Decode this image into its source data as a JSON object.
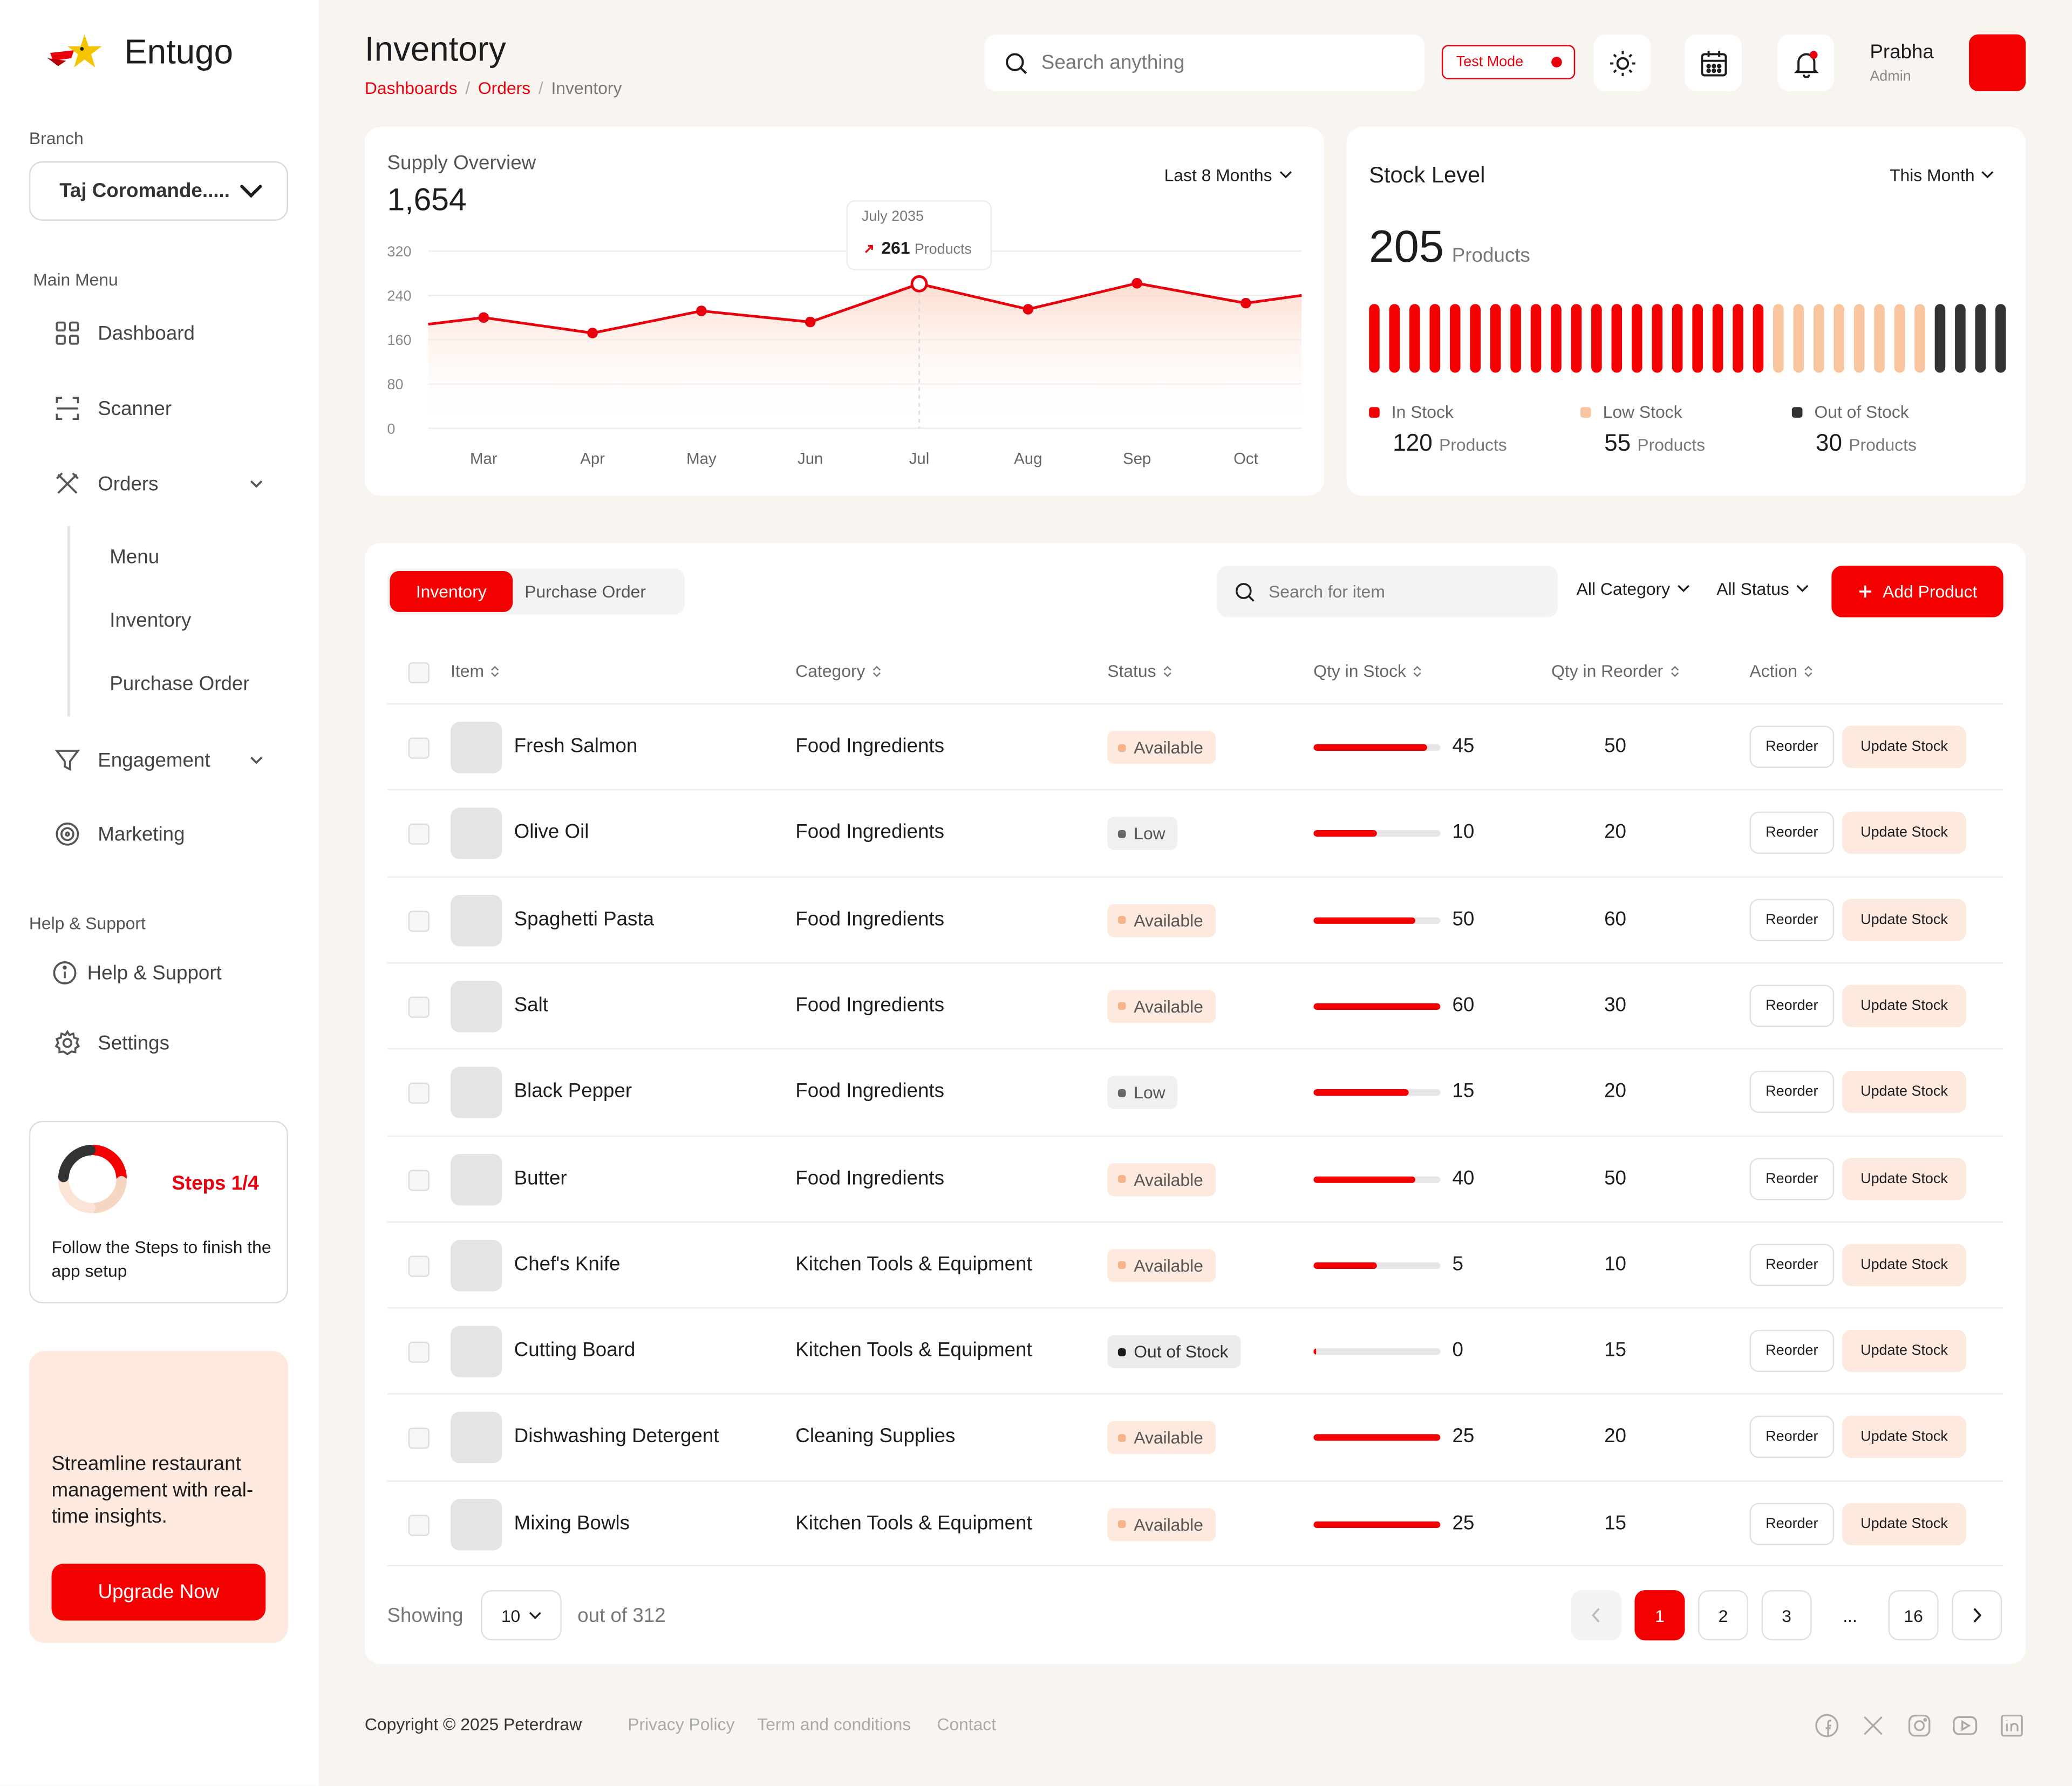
{
  "app": {
    "name": "Entugo"
  },
  "sidebar": {
    "branch_label": "Branch",
    "branch_value": "Taj Coromande.....",
    "main_menu_label": "Main Menu",
    "items": {
      "dashboard": "Dashboard",
      "scanner": "Scanner",
      "orders": "Orders",
      "engagement": "Engagement",
      "marketing": "Marketing"
    },
    "orders_sub": [
      "Menu",
      "Inventory",
      "Purchase Order"
    ],
    "help_label": "Help & Support",
    "help_items": {
      "help": "Help & Support",
      "settings": "Settings"
    },
    "steps": {
      "title": "Steps 1/4",
      "progress": 0.25,
      "text": "Follow the Steps to finish the  app setup"
    },
    "promo": {
      "text": "Streamline restaurant management with real-time insights.",
      "button": "Upgrade Now"
    }
  },
  "header": {
    "title": "Inventory",
    "breadcrumb": [
      "Dashboards",
      "Orders",
      "Inventory"
    ],
    "search_placeholder": "Search anything",
    "test_mode": "Test Mode",
    "user": {
      "name": "Prabha",
      "role": "Admin"
    }
  },
  "supply": {
    "title": "Supply Overview",
    "total": "1,654",
    "range": "Last 8 Months",
    "tooltip": {
      "date": "July 2035",
      "value": "261",
      "unit": "Products"
    }
  },
  "chart_data": {
    "type": "area",
    "x": [
      "Mar",
      "Apr",
      "May",
      "Jun",
      "Jul",
      "Aug",
      "Sep",
      "Oct"
    ],
    "values": [
      200,
      172,
      212,
      192,
      261,
      215,
      262,
      226
    ],
    "line_start": 188,
    "line_end": 240,
    "ylim": [
      0,
      320
    ],
    "yticks": [
      "320",
      "240",
      "160",
      "80",
      "0"
    ],
    "highlight": "Jul",
    "color": "#e8000d"
  },
  "stock": {
    "title": "Stock Level",
    "period": "This Month",
    "total": "205",
    "unit": "Products",
    "in_stock_bars": 20,
    "low_stock_bars": 8,
    "out_stock_bars": 4,
    "legend": [
      {
        "label": "In Stock",
        "count": "120",
        "unit": "Products",
        "color": "#f40000"
      },
      {
        "label": "Low Stock",
        "count": "55",
        "unit": "Products",
        "color": "#f8c59e"
      },
      {
        "label": "Out of Stock",
        "count": "30",
        "unit": "Products",
        "color": "#333333"
      }
    ]
  },
  "table": {
    "tabs": [
      "Inventory",
      "Purchase Order"
    ],
    "search_placeholder": "Search for item",
    "filter_category": "All Category",
    "filter_status": "All Status",
    "add_button": "Add Product",
    "headers": [
      "Item",
      "Category",
      "Status",
      "Qty in Stock",
      "Qty in Reorder",
      "Action"
    ],
    "reorder_label": "Reorder",
    "update_label": "Update Stock",
    "rows": [
      {
        "name": "Fresh Salmon",
        "category": "Food Ingredients",
        "status": "Available",
        "status_type": "available",
        "qty": "45",
        "level": 0.9,
        "reorder": "50"
      },
      {
        "name": "Olive Oil",
        "category": "Food Ingredients",
        "status": "Low",
        "status_type": "low",
        "qty": "10",
        "level": 0.5,
        "reorder": "20"
      },
      {
        "name": "Spaghetti Pasta",
        "category": "Food Ingredients",
        "status": "Available",
        "status_type": "available",
        "qty": "50",
        "level": 0.8,
        "reorder": "60"
      },
      {
        "name": "Salt",
        "category": "Food Ingredients",
        "status": "Available",
        "status_type": "available",
        "qty": "60",
        "level": 1.0,
        "reorder": "30"
      },
      {
        "name": "Black Pepper",
        "category": "Food Ingredients",
        "status": "Low",
        "status_type": "low",
        "qty": "15",
        "level": 0.75,
        "reorder": "20"
      },
      {
        "name": "Butter",
        "category": "Food Ingredients",
        "status": "Available",
        "status_type": "available",
        "qty": "40",
        "level": 0.8,
        "reorder": "50"
      },
      {
        "name": "Chef's Knife",
        "category": "Kitchen Tools & Equipment",
        "status": "Available",
        "status_type": "available",
        "qty": "5",
        "level": 0.5,
        "reorder": "10"
      },
      {
        "name": "Cutting Board",
        "category": "Kitchen Tools & Equipment",
        "status": "Out of Stock",
        "status_type": "out",
        "qty": "0",
        "level": 0.02,
        "reorder": "15"
      },
      {
        "name": "Dishwashing Detergent",
        "category": "Cleaning Supplies",
        "status": "Available",
        "status_type": "available",
        "qty": "25",
        "level": 1.0,
        "reorder": "20"
      },
      {
        "name": "Mixing Bowls",
        "category": "Kitchen Tools & Equipment",
        "status": "Available",
        "status_type": "available",
        "qty": "25",
        "level": 1.0,
        "reorder": "15"
      }
    ],
    "showing_label": "Showing",
    "page_size": "10",
    "out_of": "out of 312",
    "pages": [
      "1",
      "2",
      "3",
      "...",
      "16"
    ]
  },
  "footer": {
    "copyright": "Copyright © 2025 Peterdraw",
    "links": [
      "Privacy Policy",
      "Term and conditions",
      "Contact"
    ],
    "social": [
      "facebook-icon",
      "x-icon",
      "instagram-icon",
      "youtube-icon",
      "linkedin-icon"
    ]
  }
}
